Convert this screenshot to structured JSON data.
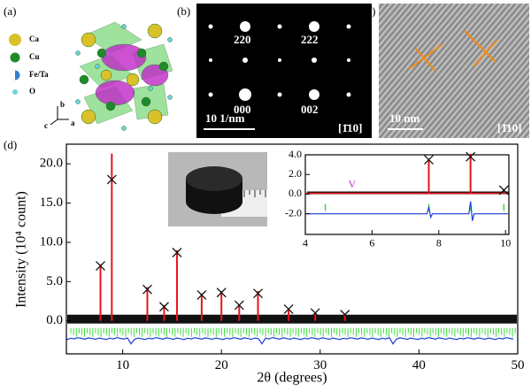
{
  "panels": {
    "a": {
      "label": "(a)",
      "legend": [
        "Ca",
        "Cu",
        "Fe/Ta",
        "O"
      ],
      "axes": [
        "b",
        "c",
        "a"
      ]
    },
    "b": {
      "label": "(b)",
      "spots": [
        "220",
        "222",
        "000",
        "002"
      ],
      "scale_bar": "10 1/nm",
      "zone_axis": "[1̄10]"
    },
    "c": {
      "label": "(c)",
      "scale_bar": "10 nm",
      "zone_axis": "[1̄10]"
    }
  },
  "chart_data": {
    "type": "stem",
    "panel_label": "(d)",
    "x_label": "2θ (degrees)",
    "y_label": "Intensity (10⁴ count)",
    "xlim": [
      4.3,
      50
    ],
    "ylim": [
      -4.2,
      22.5
    ],
    "xticks": [
      10,
      20,
      30,
      40,
      50
    ],
    "yticks": [
      {
        "value": 0,
        "label": "0.0"
      },
      {
        "value": 5,
        "label": "5.0"
      },
      {
        "value": 10,
        "label": "10.0"
      },
      {
        "value": 15,
        "label": "15.0"
      },
      {
        "value": 20,
        "label": "20.0"
      }
    ],
    "x": [
      7.75,
      8.9,
      12.5,
      14.2,
      15.5,
      18.0,
      20.0,
      21.8,
      23.7,
      26.8,
      29.5,
      32.5
    ],
    "series": [
      {
        "color": "#e8141b",
        "values": [
          7.2,
          21.3,
          4.3,
          2.0,
          9.0,
          3.5,
          3.8,
          2.1,
          3.8,
          1.6,
          1.0,
          0.8
        ]
      },
      {
        "color": "#111111",
        "values": [
          7.0,
          18.0,
          4.0,
          1.8,
          8.7,
          3.3,
          3.6,
          2.0,
          3.5,
          1.5,
          1.0,
          0.8
        ]
      }
    ],
    "inset": {
      "xlim": [
        4,
        10.1
      ],
      "ylim": [
        -4.1,
        4.0
      ],
      "xticks": [
        4,
        6,
        8,
        10
      ],
      "yticks": [
        {
          "value": -2,
          "label": "-2.0"
        },
        {
          "value": 0,
          "label": "0.0"
        },
        {
          "value": 2,
          "label": "2.0"
        },
        {
          "value": 4,
          "label": "4.0"
        }
      ],
      "annotation": "V",
      "x": [
        7.7,
        8.95,
        9.95
      ],
      "series": [
        {
          "color": "#e8141b",
          "values": [
            3.6,
            4.1,
            0.5
          ]
        },
        {
          "color": "#111111",
          "values": [
            3.5,
            3.8,
            0.4
          ]
        }
      ]
    }
  }
}
